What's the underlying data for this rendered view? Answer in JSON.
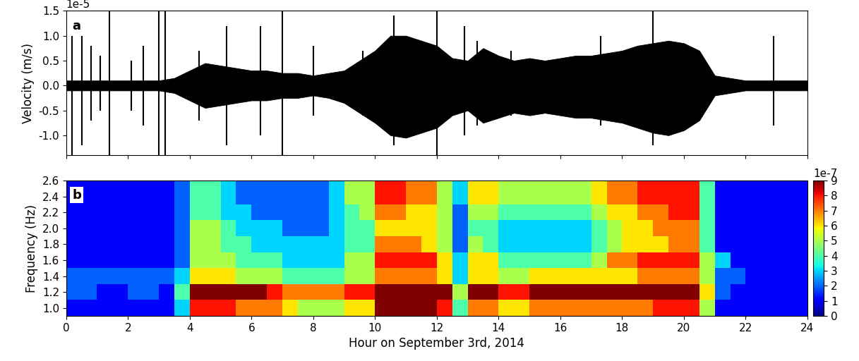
{
  "chart_data": [
    {
      "type": "line",
      "panel_label": "a",
      "y_label": "Velocity (m/s)",
      "offset_label": "1e-5",
      "color": "#000000",
      "xlim": [
        0,
        24
      ],
      "xticks": [
        0,
        2,
        4,
        6,
        8,
        10,
        12,
        14,
        16,
        18,
        20,
        22,
        24
      ],
      "ylim": [
        -1.4,
        1.5
      ],
      "yticks": [
        -1.0,
        -0.5,
        0.0,
        0.5,
        1.0,
        1.5
      ],
      "tick_labels": "y",
      "x": [
        0,
        0.5,
        1,
        1.5,
        2,
        2.5,
        3,
        3.5,
        4,
        4.5,
        5,
        5.5,
        6,
        6.5,
        7,
        7.5,
        8,
        8.5,
        9,
        9.5,
        10,
        10.5,
        11,
        11.5,
        12,
        12.5,
        13,
        13.5,
        14,
        14.5,
        15,
        15.5,
        16,
        16.5,
        17,
        17.5,
        18,
        18.5,
        19,
        19.5,
        20,
        20.5,
        21,
        21.5,
        22,
        22.5,
        23,
        23.5,
        24
      ],
      "upper": [
        0.1,
        0.1,
        0.1,
        0.1,
        0.1,
        0.1,
        0.1,
        0.15,
        0.3,
        0.45,
        0.4,
        0.35,
        0.3,
        0.3,
        0.25,
        0.25,
        0.2,
        0.25,
        0.3,
        0.5,
        0.7,
        1.0,
        1.0,
        0.9,
        0.8,
        0.55,
        0.5,
        0.75,
        0.6,
        0.5,
        0.55,
        0.5,
        0.55,
        0.6,
        0.6,
        0.65,
        0.7,
        0.8,
        0.85,
        0.9,
        0.85,
        0.7,
        0.2,
        0.15,
        0.1,
        0.1,
        0.1,
        0.1,
        0.1
      ],
      "lower": [
        -0.1,
        -0.1,
        -0.1,
        -0.1,
        -0.1,
        -0.1,
        -0.1,
        -0.15,
        -0.3,
        -0.45,
        -0.4,
        -0.35,
        -0.3,
        -0.3,
        -0.25,
        -0.25,
        -0.2,
        -0.25,
        -0.35,
        -0.55,
        -0.75,
        -1.0,
        -1.05,
        -0.95,
        -0.85,
        -0.6,
        -0.5,
        -0.75,
        -0.65,
        -0.55,
        -0.6,
        -0.55,
        -0.6,
        -0.65,
        -0.65,
        -0.7,
        -0.75,
        -0.85,
        -0.95,
        -1.0,
        -0.9,
        -0.7,
        -0.2,
        -0.15,
        -0.1,
        -0.1,
        -0.1,
        -0.1,
        -0.1
      ],
      "spikes": {
        "x": [
          0.2,
          0.5,
          0.8,
          1.1,
          1.4,
          2.1,
          2.5,
          3.0,
          3.2,
          4.3,
          5.2,
          6.3,
          7.0,
          8.0,
          9.6,
          10.6,
          12.0,
          12.9,
          13.3,
          14.4,
          17.3,
          19.0,
          20.5,
          22.9
        ],
        "upper": [
          1.0,
          1.0,
          0.8,
          0.6,
          1.5,
          0.5,
          0.8,
          1.5,
          1.5,
          0.7,
          1.2,
          1.2,
          1.5,
          0.8,
          0.7,
          1.4,
          1.5,
          1.2,
          0.9,
          0.7,
          1.0,
          1.5,
          0.6,
          1.0
        ],
        "lower": [
          -1.4,
          -1.2,
          -0.7,
          -0.5,
          -1.4,
          -0.5,
          -0.8,
          -1.4,
          -1.4,
          -0.7,
          -1.2,
          -1.0,
          -1.4,
          -0.6,
          -0.6,
          -1.2,
          -1.4,
          -1.0,
          -0.8,
          -0.6,
          -0.8,
          -1.2,
          -0.6,
          -0.8
        ]
      }
    },
    {
      "type": "heatmap",
      "panel_label": "b",
      "x_label": "Hour on September 3rd, 2014",
      "y_label": "Frequency (Hz)",
      "xlim": [
        0,
        24
      ],
      "xticks": [
        0,
        2,
        4,
        6,
        8,
        10,
        12,
        14,
        16,
        18,
        20,
        22,
        24
      ],
      "ylim": [
        0.9,
        2.6
      ],
      "yticks": [
        1.0,
        1.2,
        1.4,
        1.6,
        1.8,
        2.0,
        2.2,
        2.4,
        2.6
      ],
      "x_edges": [
        0,
        0.5,
        1,
        1.5,
        2,
        2.5,
        3,
        3.5,
        4,
        4.5,
        5,
        5.5,
        6,
        6.5,
        7,
        7.5,
        8,
        8.5,
        9,
        9.5,
        10,
        10.5,
        11,
        11.5,
        12,
        12.5,
        13,
        13.5,
        14,
        14.5,
        15,
        15.5,
        16,
        16.5,
        17,
        17.5,
        18,
        18.5,
        19,
        19.5,
        20,
        20.5,
        21,
        21.5,
        22,
        22.5,
        23,
        23.5,
        24
      ],
      "y_edges": [
        0.9,
        1.1,
        1.3,
        1.5,
        1.7,
        1.9,
        2.1,
        2.3,
        2.6
      ],
      "cells": [
        [
          1,
          1,
          1,
          1,
          1,
          1,
          1,
          3,
          8,
          8,
          8,
          7,
          7,
          7,
          6,
          5,
          5,
          5,
          6,
          6,
          9,
          9,
          9,
          9,
          8,
          4,
          7,
          7,
          6,
          6,
          7,
          7,
          7,
          7,
          7,
          7,
          7,
          7,
          8,
          8,
          8,
          5,
          1,
          1,
          1,
          1,
          1,
          1
        ],
        [
          2,
          2,
          1,
          1,
          2,
          2,
          1,
          4,
          9,
          9,
          9,
          9,
          9,
          8,
          7,
          7,
          7,
          7,
          8,
          8,
          9,
          9,
          9,
          9,
          9,
          5,
          9,
          9,
          8,
          8,
          9,
          9,
          9,
          9,
          9,
          9,
          9,
          9,
          9,
          9,
          9,
          6,
          2,
          1,
          1,
          1,
          1,
          1
        ],
        [
          2,
          2,
          2,
          2,
          2,
          2,
          2,
          3,
          6,
          6,
          6,
          5,
          5,
          5,
          4,
          4,
          4,
          4,
          5,
          5,
          7,
          7,
          7,
          7,
          6,
          3,
          6,
          6,
          5,
          5,
          6,
          6,
          6,
          6,
          6,
          6,
          6,
          7,
          7,
          7,
          7,
          5,
          2,
          2,
          1,
          1,
          1,
          1
        ],
        [
          1,
          1,
          1,
          1,
          1,
          1,
          1,
          2,
          5,
          5,
          5,
          4,
          4,
          4,
          3,
          3,
          3,
          3,
          5,
          5,
          8,
          8,
          8,
          8,
          6,
          3,
          6,
          6,
          4,
          4,
          4,
          4,
          4,
          4,
          5,
          7,
          7,
          8,
          8,
          8,
          8,
          5,
          3,
          1,
          1,
          1,
          1,
          1
        ],
        [
          1,
          1,
          1,
          1,
          1,
          1,
          1,
          2,
          5,
          5,
          4,
          4,
          3,
          3,
          3,
          3,
          3,
          3,
          4,
          4,
          7,
          7,
          7,
          6,
          5,
          2,
          5,
          4,
          3,
          3,
          3,
          3,
          3,
          3,
          4,
          5,
          6,
          6,
          6,
          7,
          7,
          4,
          1,
          1,
          1,
          1,
          1,
          1
        ],
        [
          1,
          1,
          1,
          1,
          1,
          1,
          1,
          2,
          5,
          5,
          4,
          3,
          3,
          3,
          2,
          2,
          2,
          3,
          4,
          4,
          6,
          6,
          6,
          6,
          5,
          2,
          4,
          4,
          3,
          3,
          3,
          3,
          3,
          3,
          4,
          5,
          6,
          6,
          7,
          7,
          7,
          4,
          1,
          1,
          1,
          1,
          1,
          1
        ],
        [
          1,
          1,
          1,
          1,
          1,
          1,
          1,
          2,
          4,
          4,
          3,
          3,
          2,
          2,
          2,
          2,
          2,
          3,
          4,
          5,
          7,
          7,
          6,
          6,
          5,
          2,
          5,
          5,
          4,
          4,
          4,
          4,
          4,
          4,
          5,
          6,
          6,
          7,
          7,
          8,
          8,
          4,
          1,
          1,
          1,
          1,
          1,
          1
        ],
        [
          1,
          1,
          1,
          1,
          1,
          1,
          1,
          2,
          4,
          4,
          3,
          2,
          2,
          2,
          2,
          2,
          2,
          3,
          5,
          5,
          8,
          8,
          7,
          7,
          5,
          3,
          6,
          6,
          5,
          5,
          5,
          5,
          5,
          5,
          6,
          7,
          7,
          8,
          8,
          8,
          8,
          4,
          1,
          1,
          1,
          1,
          1,
          1
        ]
      ],
      "colorbar": {
        "range": [
          0,
          9
        ],
        "ticks": [
          0,
          1,
          2,
          3,
          4,
          5,
          6,
          7,
          8,
          9
        ],
        "label": "1e-7"
      }
    }
  ]
}
